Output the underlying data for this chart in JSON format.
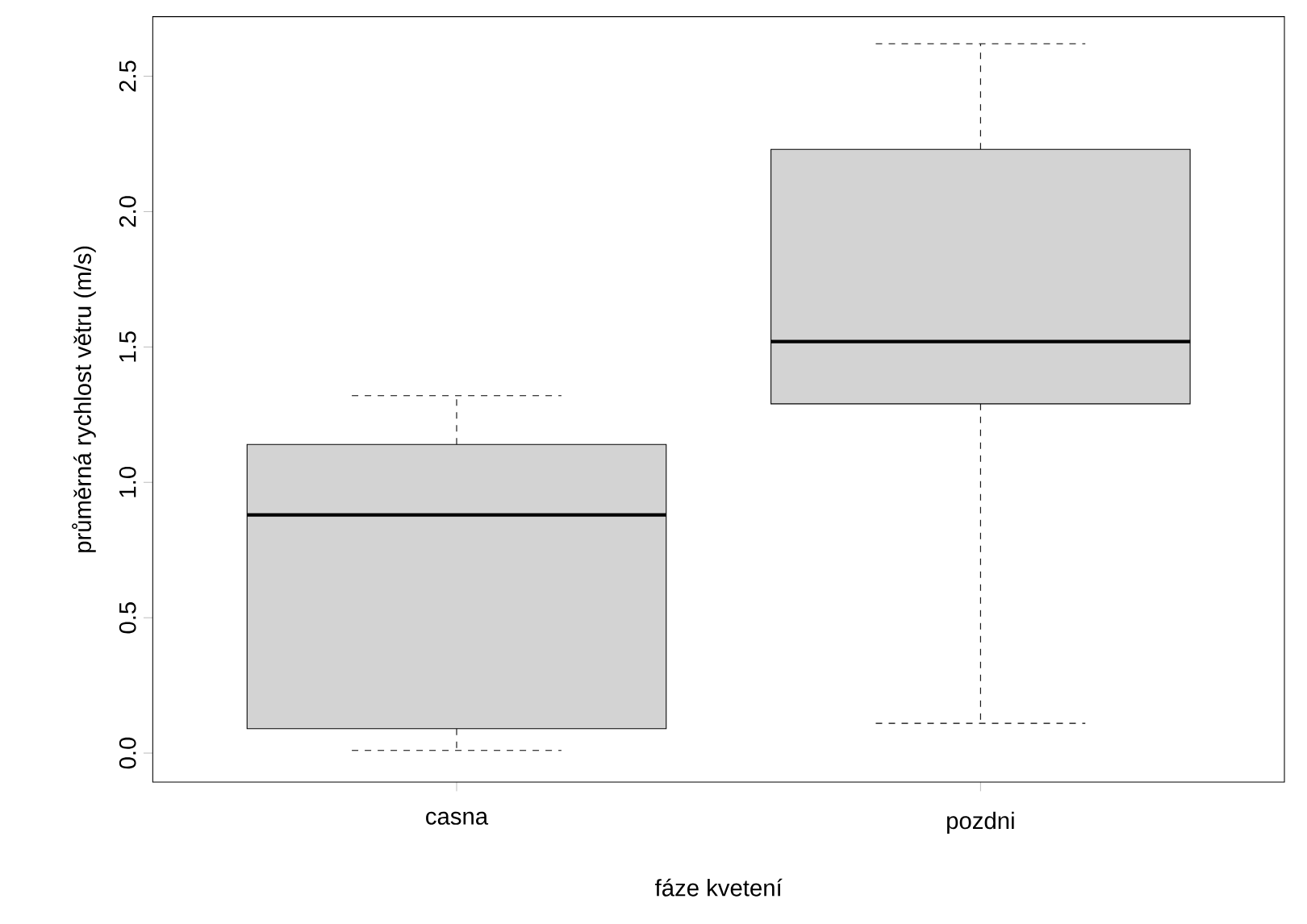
{
  "chart_data": {
    "type": "box",
    "xlabel": "fáze kvetení",
    "ylabel": "průměrná rychlost větru (m/s)",
    "categories": [
      "casna",
      "pozdni"
    ],
    "color": "#d3d3d3",
    "boxes": [
      {
        "low": 0.01,
        "q1": 0.09,
        "median": 0.88,
        "q3": 1.14,
        "high": 1.32
      },
      {
        "low": 0.11,
        "q1": 1.29,
        "median": 1.52,
        "q3": 2.23,
        "high": 2.62
      }
    ],
    "ylim": [
      -0.107,
      2.72
    ],
    "yticks": [
      {
        "value": 0,
        "label": "0.0"
      },
      {
        "value": 0.5,
        "label": "0.5"
      },
      {
        "value": 1,
        "label": "1.0"
      },
      {
        "value": 1.5,
        "label": "1.5"
      },
      {
        "value": 2,
        "label": "2.0"
      },
      {
        "value": 2.5,
        "label": "2.5"
      }
    ],
    "grid": false
  }
}
